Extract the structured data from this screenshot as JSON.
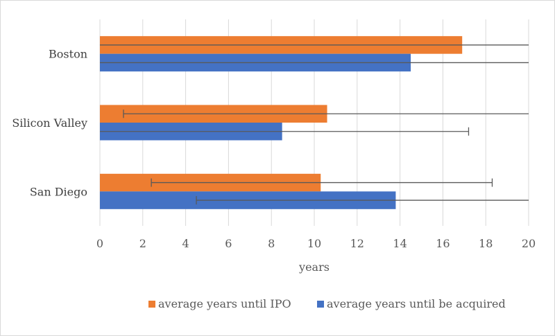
{
  "chart_data": {
    "type": "bar",
    "orientation": "horizontal",
    "categories": [
      "Boston",
      "Silicon Valley",
      "San Diego"
    ],
    "series": [
      {
        "name": "average years until IPO",
        "color": "#ED7D31",
        "values": [
          16.9,
          10.6,
          10.3
        ],
        "error_minus": [
          16.9,
          9.5,
          7.9
        ],
        "error_plus": [
          3.1,
          9.4,
          8.0
        ]
      },
      {
        "name": "average years until be acquired",
        "color": "#4472C4",
        "values": [
          14.5,
          8.5,
          13.8
        ],
        "error_minus": [
          14.5,
          8.5,
          9.3
        ],
        "error_plus": [
          5.5,
          8.7,
          6.2
        ]
      }
    ],
    "xlabel": "years",
    "ylabel": "",
    "xlim": [
      0,
      20
    ],
    "x_ticks": [
      "0",
      "2",
      "4",
      "6",
      "8",
      "10",
      "12",
      "14",
      "16",
      "18",
      "20"
    ],
    "grid": true,
    "legend_position": "bottom"
  }
}
